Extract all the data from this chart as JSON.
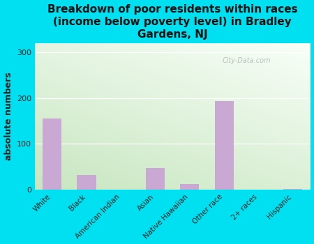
{
  "categories": [
    "White",
    "Black",
    "American Indian",
    "Asian",
    "Native Hawaiian",
    "Other race",
    "2+ races",
    "Hispanic"
  ],
  "values": [
    155,
    33,
    0,
    47,
    13,
    193,
    0,
    2
  ],
  "bar_color": "#c9a8d4",
  "outer_bg": "#00e0f0",
  "title": "Breakdown of poor residents within races\n(income below poverty level) in Bradley\nGardens, NJ",
  "ylabel": "absolute numbers",
  "ylim": [
    0,
    320
  ],
  "yticks": [
    0,
    100,
    200,
    300
  ],
  "title_fontsize": 11,
  "ylabel_fontsize": 9,
  "watermark": "City-Data.com",
  "bg_bottom_left": "#c8e6c0",
  "bg_top_right": "#f8fff8"
}
